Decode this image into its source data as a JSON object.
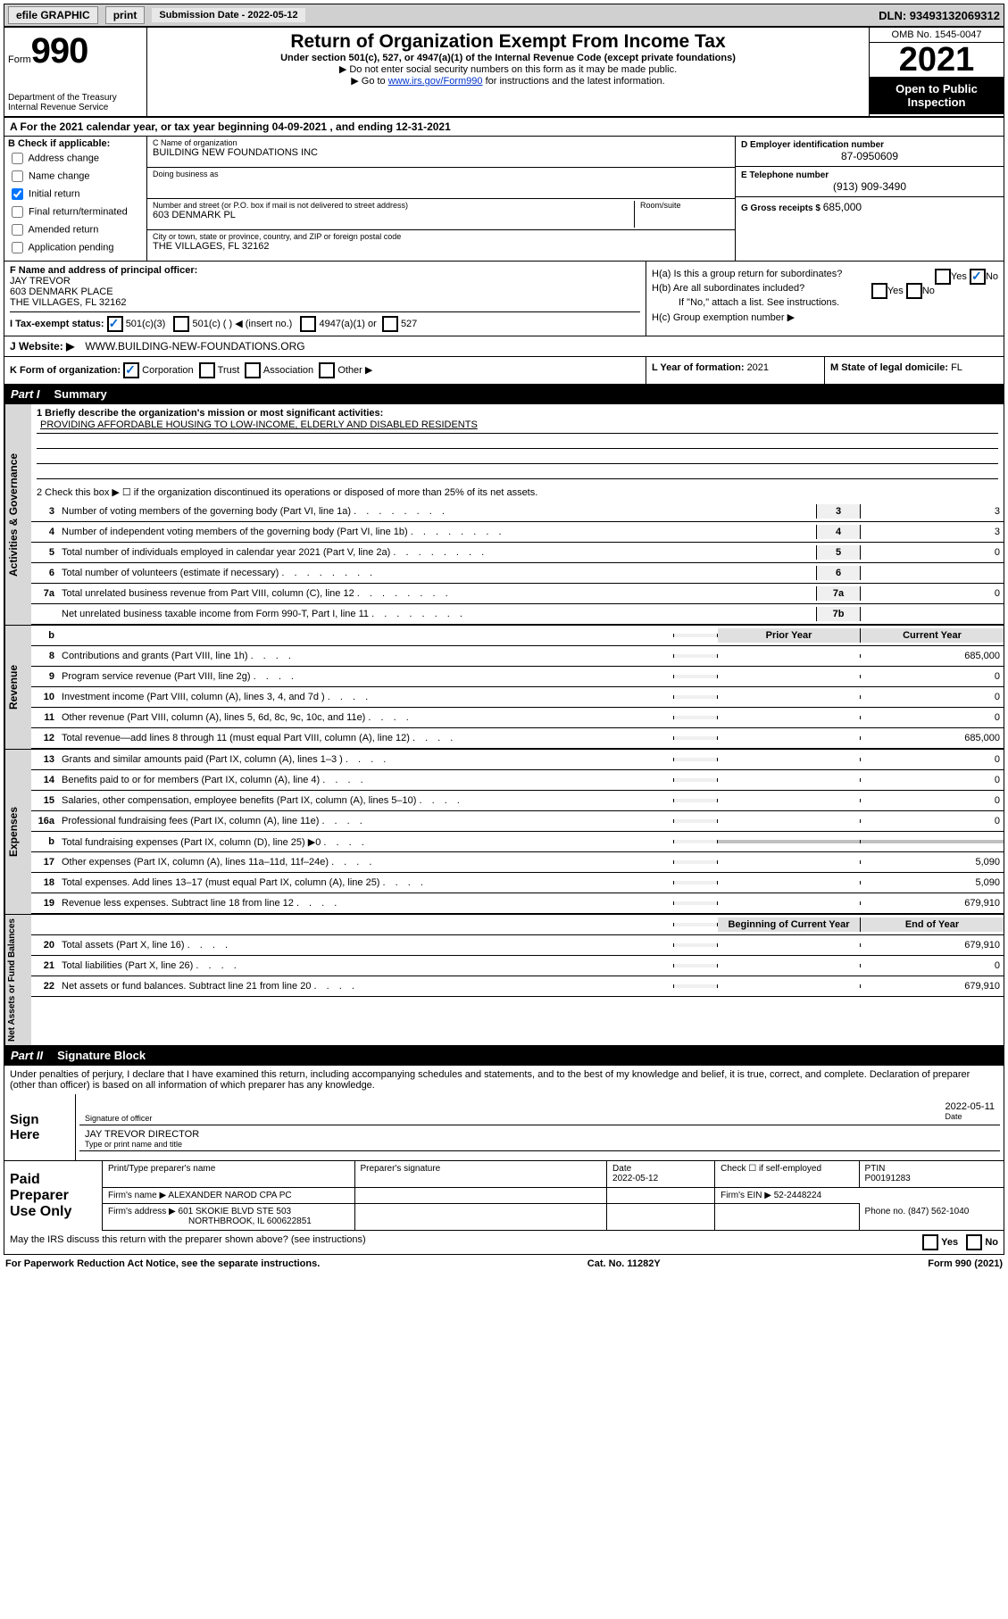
{
  "topbar": {
    "efile": "efile GRAPHIC",
    "print": "print",
    "subdate_label": "Submission Date - 2022-05-12",
    "dln": "DLN: 93493132069312"
  },
  "header": {
    "form_small": "Form",
    "form_big": "990",
    "title": "Return of Organization Exempt From Income Tax",
    "subtitle": "Under section 501(c), 527, or 4947(a)(1) of the Internal Revenue Code (except private foundations)",
    "note1": "▶ Do not enter social security numbers on this form as it may be made public.",
    "note2_prefix": "▶ Go to ",
    "note2_link": "www.irs.gov/Form990",
    "note2_suffix": " for instructions and the latest information.",
    "omb": "OMB No. 1545-0047",
    "year": "2021",
    "open": "Open to Public Inspection",
    "dept": "Department of the Treasury",
    "irs": "Internal Revenue Service"
  },
  "rowA": {
    "text": "A For the 2021 calendar year, or tax year beginning 04-09-2021  , and ending 12-31-2021"
  },
  "sectionB": {
    "label": "B Check if applicable:",
    "items": [
      "Address change",
      "Name change",
      "Initial return",
      "Final return/terminated",
      "Amended return",
      "Application pending"
    ],
    "checked_index": 2
  },
  "sectionC": {
    "name_label": "C Name of organization",
    "name": "BUILDING NEW FOUNDATIONS INC",
    "dba_label": "Doing business as",
    "dba": "",
    "addr_label": "Number and street (or P.O. box if mail is not delivered to street address)",
    "addr": "603 DENMARK PL",
    "room_label": "Room/suite",
    "city_label": "City or town, state or province, country, and ZIP or foreign postal code",
    "city": "THE VILLAGES, FL  32162"
  },
  "rightCol": {
    "d_label": "D Employer identification number",
    "d_val": "87-0950609",
    "e_label": "E Telephone number",
    "e_val": "(913) 909-3490",
    "g_label": "G Gross receipts $ ",
    "g_val": "685,000"
  },
  "sectionF": {
    "label": "F Name and address of principal officer:",
    "line1": "JAY TREVOR",
    "line2": "603 DENMARK PLACE",
    "line3": "THE VILLAGES, FL  32162"
  },
  "sectionH": {
    "ha": "H(a)  Is this a group return for subordinates?",
    "hb": "H(b)  Are all subordinates included?",
    "hb_note": "If \"No,\" attach a list. See instructions.",
    "hc": "H(c)  Group exemption number ▶",
    "yes": "Yes",
    "no": "No"
  },
  "rowI": {
    "label": "I  Tax-exempt status:",
    "opt1": "501(c)(3)",
    "opt2": "501(c) (  ) ◀ (insert no.)",
    "opt3": "4947(a)(1) or",
    "opt4": "527"
  },
  "rowJ": {
    "label": "J  Website: ▶",
    "val": "WWW.BUILDING-NEW-FOUNDATIONS.ORG"
  },
  "rowK": {
    "label": "K Form of organization:",
    "opts": [
      "Corporation",
      "Trust",
      "Association",
      "Other ▶"
    ],
    "l_label": "L Year of formation: ",
    "l_val": "2021",
    "m_label": "M State of legal domicile: ",
    "m_val": "FL"
  },
  "part1": {
    "label": "Part I",
    "title": "Summary"
  },
  "summary": {
    "side1": "Activities & Governance",
    "line1_label": "1   Briefly describe the organization's mission or most significant activities:",
    "line1_val": "PROVIDING AFFORDABLE HOUSING TO LOW-INCOME, ELDERLY AND DISABLED RESIDENTS",
    "line2": "2   Check this box ▶ ☐  if the organization discontinued its operations or disposed of more than 25% of its net assets.",
    "rows_gov": [
      {
        "n": "3",
        "t": "Number of voting members of the governing body (Part VI, line 1a)",
        "ln": "3",
        "v": "3"
      },
      {
        "n": "4",
        "t": "Number of independent voting members of the governing body (Part VI, line 1b)",
        "ln": "4",
        "v": "3"
      },
      {
        "n": "5",
        "t": "Total number of individuals employed in calendar year 2021 (Part V, line 2a)",
        "ln": "5",
        "v": "0"
      },
      {
        "n": "6",
        "t": "Total number of volunteers (estimate if necessary)",
        "ln": "6",
        "v": ""
      },
      {
        "n": "7a",
        "t": "Total unrelated business revenue from Part VIII, column (C), line 12",
        "ln": "7a",
        "v": "0"
      },
      {
        "n": "",
        "t": "Net unrelated business taxable income from Form 990-T, Part I, line 11",
        "ln": "7b",
        "v": ""
      }
    ],
    "side2": "Revenue",
    "header_prior": "Prior Year",
    "header_current": "Current Year",
    "rows_rev": [
      {
        "n": "8",
        "t": "Contributions and grants (Part VIII, line 1h)",
        "p": "",
        "c": "685,000"
      },
      {
        "n": "9",
        "t": "Program service revenue (Part VIII, line 2g)",
        "p": "",
        "c": "0"
      },
      {
        "n": "10",
        "t": "Investment income (Part VIII, column (A), lines 3, 4, and 7d )",
        "p": "",
        "c": "0"
      },
      {
        "n": "11",
        "t": "Other revenue (Part VIII, column (A), lines 5, 6d, 8c, 9c, 10c, and 11e)",
        "p": "",
        "c": "0"
      },
      {
        "n": "12",
        "t": "Total revenue—add lines 8 through 11 (must equal Part VIII, column (A), line 12)",
        "p": "",
        "c": "685,000"
      }
    ],
    "side3": "Expenses",
    "rows_exp": [
      {
        "n": "13",
        "t": "Grants and similar amounts paid (Part IX, column (A), lines 1–3 )",
        "p": "",
        "c": "0"
      },
      {
        "n": "14",
        "t": "Benefits paid to or for members (Part IX, column (A), line 4)",
        "p": "",
        "c": "0"
      },
      {
        "n": "15",
        "t": "Salaries, other compensation, employee benefits (Part IX, column (A), lines 5–10)",
        "p": "",
        "c": "0"
      },
      {
        "n": "16a",
        "t": "Professional fundraising fees (Part IX, column (A), line 11e)",
        "p": "",
        "c": "0"
      },
      {
        "n": "b",
        "t": "Total fundraising expenses (Part IX, column (D), line 25) ▶0",
        "p": "grey",
        "c": "grey"
      },
      {
        "n": "17",
        "t": "Other expenses (Part IX, column (A), lines 11a–11d, 11f–24e)",
        "p": "",
        "c": "5,090"
      },
      {
        "n": "18",
        "t": "Total expenses. Add lines 13–17 (must equal Part IX, column (A), line 25)",
        "p": "",
        "c": "5,090"
      },
      {
        "n": "19",
        "t": "Revenue less expenses. Subtract line 18 from line 12",
        "p": "",
        "c": "679,910"
      }
    ],
    "side4": "Net Assets or Fund Balances",
    "header_begin": "Beginning of Current Year",
    "header_end": "End of Year",
    "rows_net": [
      {
        "n": "20",
        "t": "Total assets (Part X, line 16)",
        "p": "",
        "c": "679,910"
      },
      {
        "n": "21",
        "t": "Total liabilities (Part X, line 26)",
        "p": "",
        "c": "0"
      },
      {
        "n": "22",
        "t": "Net assets or fund balances. Subtract line 21 from line 20",
        "p": "",
        "c": "679,910"
      }
    ]
  },
  "part2": {
    "label": "Part II",
    "title": "Signature Block"
  },
  "sig": {
    "intro": "Under penalties of perjury, I declare that I have examined this return, including accompanying schedules and statements, and to the best of my knowledge and belief, it is true, correct, and complete. Declaration of preparer (other than officer) is based on all information of which preparer has any knowledge.",
    "sign_here": "Sign Here",
    "sig_officer": "Signature of officer",
    "date": "2022-05-11",
    "date_label": "Date",
    "name": "JAY TREVOR  DIRECTOR",
    "name_label": "Type or print name and title"
  },
  "prep": {
    "label": "Paid Preparer Use Only",
    "h1": "Print/Type preparer's name",
    "h2": "Preparer's signature",
    "h3": "Date",
    "h3v": "2022-05-12",
    "h4": "Check ☐ if self-employed",
    "h5": "PTIN",
    "h5v": "P00191283",
    "firm_label": "Firm's name    ▶",
    "firm": "ALEXANDER NAROD CPA PC",
    "ein_label": "Firm's EIN ▶",
    "ein": "52-2448224",
    "addr_label": "Firm's address ▶",
    "addr1": "601 SKOKIE BLVD STE 503",
    "addr2": "NORTHBROOK, IL  600622851",
    "phone_label": "Phone no.",
    "phone": "(847) 562-1040"
  },
  "may": {
    "text": "May the IRS discuss this return with the preparer shown above? (see instructions)",
    "yes": "Yes",
    "no": "No"
  },
  "footer": {
    "left": "For Paperwork Reduction Act Notice, see the separate instructions.",
    "mid": "Cat. No. 11282Y",
    "right": "Form 990 (2021)"
  }
}
